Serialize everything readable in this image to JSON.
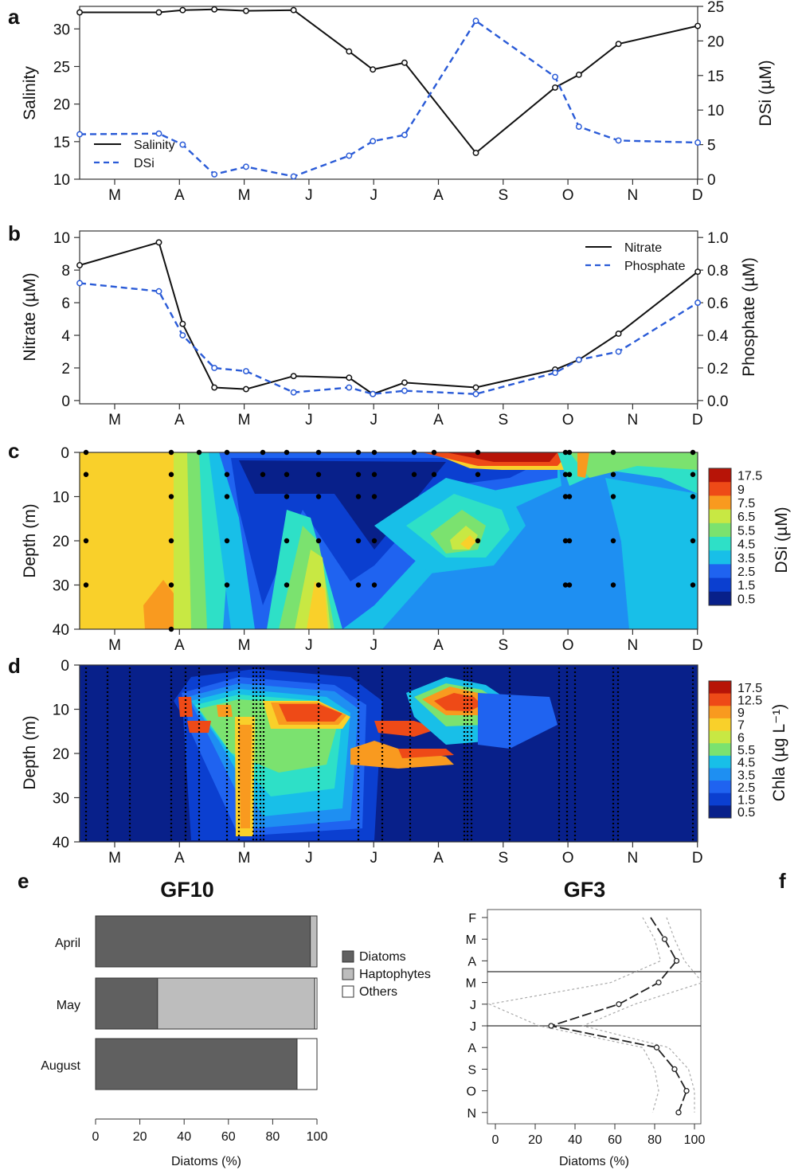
{
  "months": [
    "M",
    "A",
    "M",
    "J",
    "J",
    "A",
    "S",
    "O",
    "N",
    "D"
  ],
  "colors": {
    "salinity": "#111111",
    "dsi": "#2a5bd7",
    "nitrate": "#111111",
    "phosphate": "#2a5bd7",
    "diatoms": "#606060",
    "haptophytes": "#bdbdbd",
    "others": "#ffffff"
  },
  "contour_scale": [
    "#08208a",
    "#0b3fd0",
    "#1f63f0",
    "#1e8ff2",
    "#18bfe8",
    "#2ee0c7",
    "#7be26f",
    "#c8e843",
    "#f9d02a",
    "#f99a1f",
    "#ee4a17",
    "#b71407"
  ],
  "chart_data": [
    {
      "id": "a",
      "type": "line",
      "panel_letter": "a",
      "ylabel": "Salinity",
      "y2label": "DSi (µM)",
      "ylim": [
        10,
        33
      ],
      "y2lim": [
        0,
        25
      ],
      "yticks": [
        10,
        15,
        20,
        25,
        30
      ],
      "y2ticks": [
        0,
        5,
        10,
        15,
        20,
        25
      ],
      "legend_position": "bottom-left",
      "series": [
        {
          "name": "Salinity",
          "axis": "left",
          "style": "solid",
          "x": [
            0,
            1,
            1.3,
            1.7,
            2.1,
            2.7,
            3.4,
            3.7,
            4.1,
            5.0,
            6.0,
            6.3,
            6.8,
            7.8
          ],
          "values": [
            32.2,
            32.2,
            32.5,
            32.6,
            32.4,
            32.5,
            27.0,
            24.6,
            25.5,
            13.5,
            22.2,
            23.9,
            28.0,
            30.4
          ]
        },
        {
          "name": "DSi",
          "axis": "right",
          "style": "dashed",
          "x": [
            0,
            1,
            1.3,
            1.7,
            2.1,
            2.7,
            3.4,
            3.7,
            4.1,
            5.0,
            6.0,
            6.3,
            6.8,
            7.8
          ],
          "values": [
            6.5,
            6.6,
            5.0,
            0.7,
            1.8,
            0.4,
            3.4,
            5.5,
            6.4,
            22.9,
            14.8,
            7.6,
            5.6,
            5.3
          ]
        }
      ]
    },
    {
      "id": "b",
      "type": "line",
      "panel_letter": "b",
      "ylabel": "Nitrate (µM)",
      "y2label": "Phosphate (µM)",
      "ylim": [
        -0.2,
        10.4
      ],
      "y2lim": [
        -0.02,
        1.04
      ],
      "yticks": [
        0,
        2,
        4,
        6,
        8,
        10
      ],
      "y2ticks": [
        "0.0",
        "0.2",
        "0.4",
        "0.6",
        "0.8",
        "1.0"
      ],
      "legend_position": "top-right",
      "series": [
        {
          "name": "Nitrate",
          "axis": "left",
          "style": "solid",
          "x": [
            0,
            1,
            1.3,
            1.7,
            2.1,
            2.7,
            3.4,
            3.7,
            4.1,
            5.0,
            6.0,
            6.3,
            6.8,
            7.8
          ],
          "values": [
            8.3,
            9.7,
            4.7,
            0.8,
            0.7,
            1.5,
            1.4,
            0.4,
            1.1,
            0.8,
            1.9,
            2.5,
            4.1,
            7.9
          ]
        },
        {
          "name": "Phosphate",
          "axis": "right",
          "style": "dashed",
          "x": [
            0,
            1,
            1.3,
            1.7,
            2.1,
            2.7,
            3.4,
            3.7,
            4.1,
            5.0,
            6.0,
            6.3,
            6.8,
            7.8
          ],
          "values": [
            0.72,
            0.67,
            0.4,
            0.2,
            0.18,
            0.05,
            0.08,
            0.04,
            0.06,
            0.04,
            0.17,
            0.25,
            0.3,
            0.6
          ]
        }
      ]
    },
    {
      "id": "c",
      "type": "heatmap",
      "panel_letter": "c",
      "ylabel": "Depth (m)",
      "colorbar_label": "DSi (µM)",
      "yticks": [
        0,
        10,
        20,
        30,
        40
      ],
      "colorbar_ticks": [
        "17.5",
        "9",
        "7.5",
        "6.5",
        "5.5",
        "4.5",
        "3.5",
        "2.5",
        "1.5",
        "0.5"
      ]
    },
    {
      "id": "d",
      "type": "heatmap",
      "panel_letter": "d",
      "ylabel": "Depth (m)",
      "colorbar_label": "Chla  (µg L⁻¹)",
      "yticks": [
        0,
        10,
        20,
        30,
        40
      ],
      "colorbar_ticks": [
        "17.5",
        "12.5",
        "9",
        "7",
        "6",
        "5.5",
        "4.5",
        "3.5",
        "2.5",
        "1.5",
        "0.5"
      ]
    },
    {
      "id": "e",
      "type": "bar",
      "panel_letter": "e",
      "title": "GF10",
      "xlabel": "Diatoms (%)",
      "xticks": [
        0,
        20,
        40,
        60,
        80,
        100
      ],
      "categories": [
        "April",
        "May",
        "August"
      ],
      "series": [
        {
          "name": "Diatoms",
          "values": [
            97,
            28,
            91
          ]
        },
        {
          "name": "Haptophytes",
          "values": [
            3,
            71,
            0
          ]
        },
        {
          "name": "Others",
          "values": [
            0,
            1,
            9
          ]
        }
      ]
    },
    {
      "id": "f",
      "type": "line",
      "panel_letter": "f",
      "title": "GF3",
      "xlabel": "Diatoms (%)",
      "xticks": [
        0,
        20,
        40,
        60,
        80,
        100
      ],
      "categories": [
        "F",
        "M",
        "A",
        "M",
        "J",
        "J",
        "A",
        "S",
        "O",
        "N"
      ],
      "series": [
        {
          "name": "mean",
          "values": [
            78,
            85,
            91,
            82,
            62,
            28,
            81,
            90,
            96,
            92
          ]
        },
        {
          "name": "lower",
          "values": [
            74,
            80,
            83,
            58,
            -3,
            22,
            74,
            80,
            82,
            79
          ]
        },
        {
          "name": "upper",
          "values": [
            86,
            90,
            95,
            104,
            70,
            44,
            87,
            97,
            100,
            100
          ]
        }
      ]
    }
  ],
  "legend_c_e": [
    "Diatoms",
    "Haptophytes",
    "Others"
  ]
}
